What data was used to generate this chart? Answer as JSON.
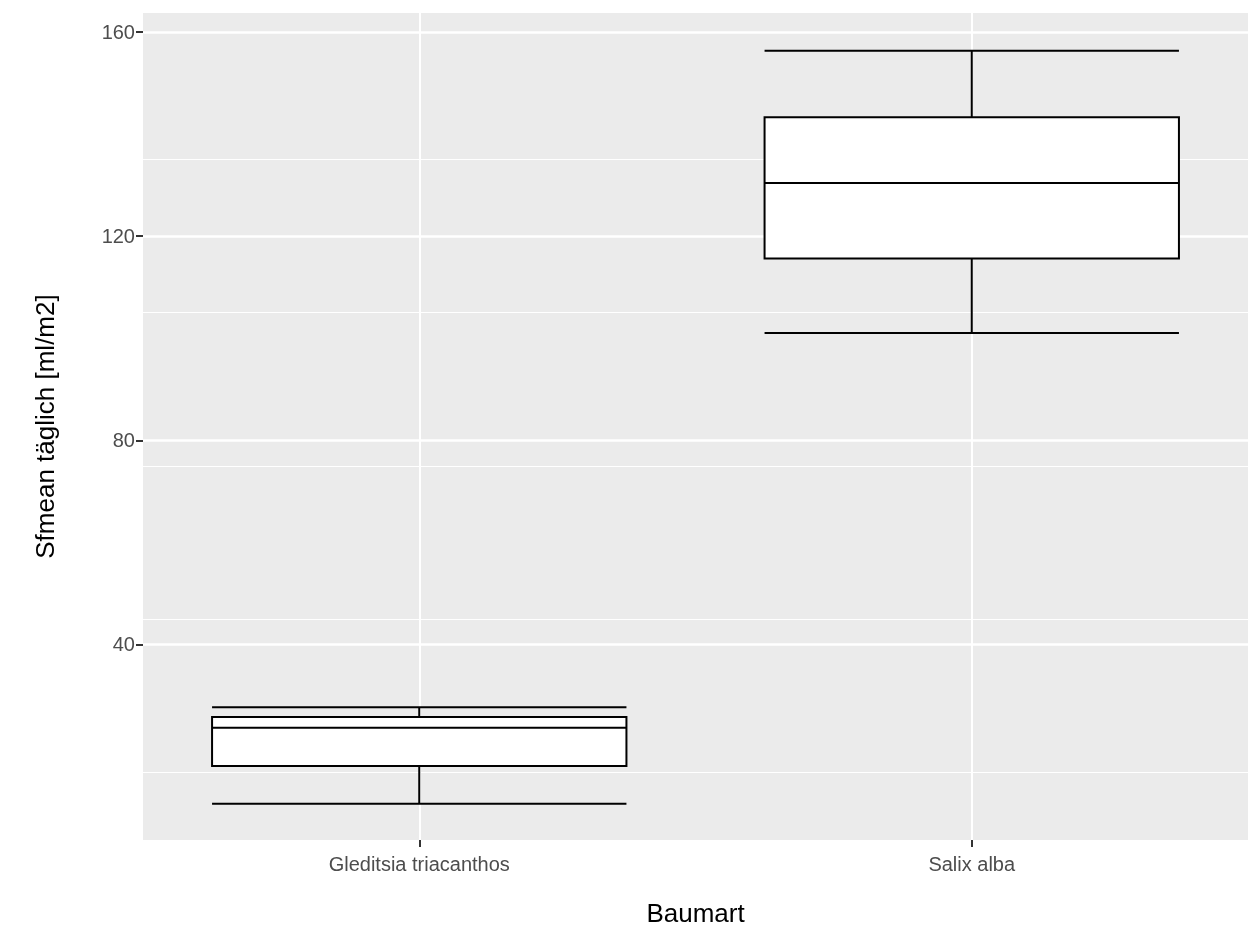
{
  "chart_data": {
    "type": "box",
    "xlabel": "Baumart",
    "ylabel": "Sfmean täglich [ml/m2]",
    "categories": [
      "Gleditsia triacanthos",
      "Salix alba"
    ],
    "boxes": [
      {
        "low": 8.8,
        "q1": 16.2,
        "median": 23.7,
        "q3": 25.8,
        "high": 27.7
      },
      {
        "low": 101,
        "q1": 115.6,
        "median": 130.4,
        "q3": 143.3,
        "high": 156.3
      }
    ],
    "ylim": [
      1.7,
      163.7
    ],
    "yticks": [
      40,
      80,
      120,
      160
    ],
    "grid": true
  }
}
